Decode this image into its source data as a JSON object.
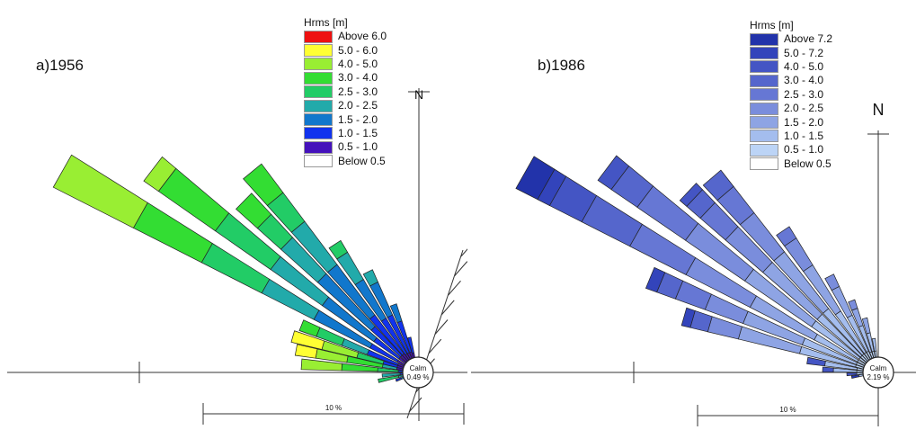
{
  "panels": [
    {
      "id": "a",
      "label": "a)1956",
      "north": "N",
      "calm": {
        "title": "Calm",
        "value": "0.49 %"
      },
      "scale_label": "10 %",
      "legend": {
        "title": "Hrms [m]",
        "entries": [
          {
            "label": "Above 6.0",
            "color": "#ee1111"
          },
          {
            "label": "5.0 - 6.0",
            "color": "#ffff33"
          },
          {
            "label": "4.0 - 5.0",
            "color": "#99ee33"
          },
          {
            "label": "3.0 - 4.0",
            "color": "#33dd33"
          },
          {
            "label": "2.5 - 3.0",
            "color": "#22cc66"
          },
          {
            "label": "2.0 - 2.5",
            "color": "#22aaaa"
          },
          {
            "label": "1.5 - 2.0",
            "color": "#1177cc"
          },
          {
            "label": "1.0 - 1.5",
            "color": "#1133ee"
          },
          {
            "label": "0.5 - 1.0",
            "color": "#4411bb"
          },
          {
            "label": "Below 0.5",
            "color": "#ffffff"
          }
        ]
      }
    },
    {
      "id": "b",
      "label": "b)1986",
      "north": "N",
      "calm": {
        "title": "Calm",
        "value": "2.19 %"
      },
      "scale_label": "10 %",
      "legend": {
        "title": "Hrms [m]",
        "entries": [
          {
            "label": "Above 7.2",
            "color": "#2233aa"
          },
          {
            "label": "5.0 - 7.2",
            "color": "#3344bb"
          },
          {
            "label": "4.0 - 5.0",
            "color": "#4455c4"
          },
          {
            "label": "3.0 - 4.0",
            "color": "#5566cc"
          },
          {
            "label": "2.5 - 3.0",
            "color": "#6677d4"
          },
          {
            "label": "2.0 - 2.5",
            "color": "#7a8ddc"
          },
          {
            "label": "1.5 - 2.0",
            "color": "#8ea4e4"
          },
          {
            "label": "1.0 - 1.5",
            "color": "#a4bdee"
          },
          {
            "label": "0.5 - 1.0",
            "color": "#bcd4f6"
          },
          {
            "label": "Below 0.5",
            "color": "#ffffff"
          }
        ]
      }
    }
  ]
}
